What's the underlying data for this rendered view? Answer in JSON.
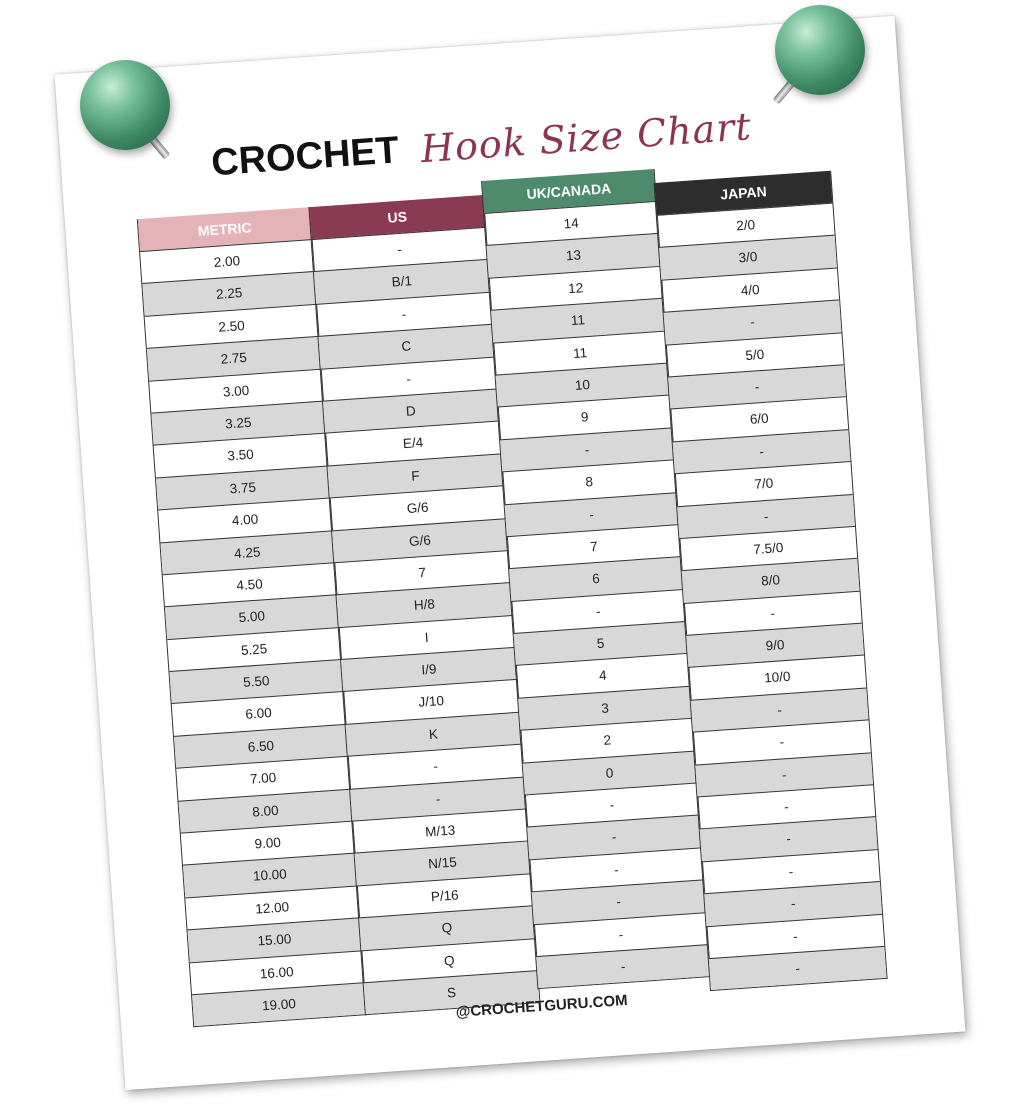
{
  "title": {
    "main": "CROCHET",
    "script": "Hook Size Chart"
  },
  "colors": {
    "metric": "#e3b3b7",
    "us": "#8a3a52",
    "uk": "#4e8a6c",
    "japan": "#2d2d2d",
    "row_alt": "#d8d8d8",
    "script_title": "#8a3552"
  },
  "table": {
    "columns": [
      {
        "key": "metric",
        "header": "METRIC",
        "values": [
          "2.00",
          "2.25",
          "2.50",
          "2.75",
          "3.00",
          "3.25",
          "3.50",
          "3.75",
          "4.00",
          "4.25",
          "4.50",
          "5.00",
          "5.25",
          "5.50",
          "6.00",
          "6.50",
          "7.00",
          "8.00",
          "9.00",
          "10.00",
          "12.00",
          "15.00",
          "16.00",
          "19.00"
        ]
      },
      {
        "key": "us",
        "header": "US",
        "values": [
          "-",
          "B/1",
          "-",
          "C",
          "-",
          "D",
          "E/4",
          "F",
          "G/6",
          "G/6",
          "7",
          "H/8",
          "I",
          "I/9",
          "J/10",
          "K",
          "-",
          "-",
          "M/13",
          "N/15",
          "P/16",
          "Q",
          "Q",
          "S"
        ]
      },
      {
        "key": "uk",
        "header": "UK/CANADA",
        "values": [
          "14",
          "13",
          "12",
          "11",
          "11",
          "10",
          "9",
          "-",
          "8",
          "-",
          "7",
          "6",
          "-",
          "5",
          "4",
          "3",
          "2",
          "0",
          "-",
          "-",
          "-",
          "-",
          "-",
          "-"
        ]
      },
      {
        "key": "japan",
        "header": "JAPAN",
        "values": [
          "2/0",
          "3/0",
          "4/0",
          "-",
          "5/0",
          "-",
          "6/0",
          "-",
          "7/0",
          "-",
          "7.5/0",
          "8/0",
          "-",
          "9/0",
          "10/0",
          "-",
          "-",
          "-",
          "-",
          "-",
          "-",
          "-",
          "-",
          "-"
        ]
      }
    ]
  },
  "footer": "@CROCHETGURU.COM",
  "icons": [
    "green-pushpin-icon",
    "green-pushpin-icon"
  ]
}
